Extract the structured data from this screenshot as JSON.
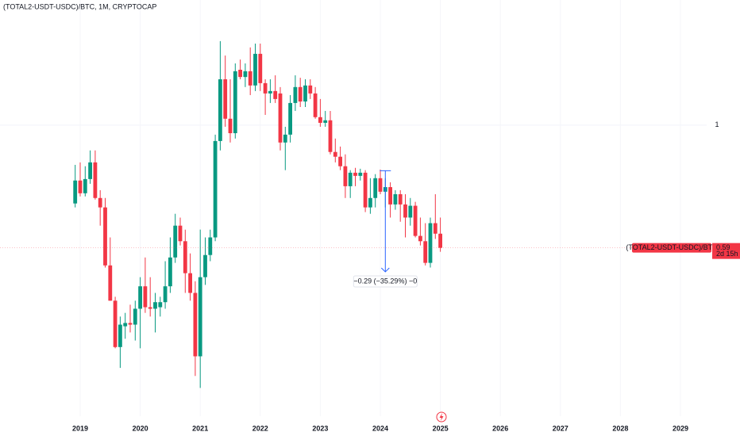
{
  "chart_data": {
    "type": "candlestick",
    "title": "(TOTAL2-USDT-USDC)/BTC, 1M, CRYPTOCAP",
    "log_scale": true,
    "grid": true,
    "up_color": "#089981",
    "down_color": "#f23645",
    "ylim": [
      0.286,
      1.713
    ],
    "yticks": [
      1
    ],
    "xticks": [
      2019,
      2020,
      2021,
      2022,
      2023,
      2024,
      2025,
      2026,
      2027,
      2028,
      2029
    ],
    "x": [
      "2018-12",
      "2019-01",
      "2019-02",
      "2019-03",
      "2019-04",
      "2019-05",
      "2019-06",
      "2019-07",
      "2019-08",
      "2019-09",
      "2019-10",
      "2019-11",
      "2019-12",
      "2020-01",
      "2020-02",
      "2020-03",
      "2020-04",
      "2020-05",
      "2020-06",
      "2020-07",
      "2020-08",
      "2020-09",
      "2020-10",
      "2020-11",
      "2020-12",
      "2021-01",
      "2021-02",
      "2021-03",
      "2021-04",
      "2021-05",
      "2021-06",
      "2021-07",
      "2021-08",
      "2021-09",
      "2021-10",
      "2021-11",
      "2021-12",
      "2022-01",
      "2022-02",
      "2022-03",
      "2022-04",
      "2022-05",
      "2022-06",
      "2022-07",
      "2022-08",
      "2022-09",
      "2022-10",
      "2022-11",
      "2022-12",
      "2023-01",
      "2023-02",
      "2023-03",
      "2023-04",
      "2023-05",
      "2023-06",
      "2023-07",
      "2023-08",
      "2023-09",
      "2023-10",
      "2023-11",
      "2023-12",
      "2024-01",
      "2024-02",
      "2024-03",
      "2024-04",
      "2024-05",
      "2024-06",
      "2024-07",
      "2024-08",
      "2024-09",
      "2024-10",
      "2024-11",
      "2024-12",
      "2025-01"
    ],
    "open": [
      0.714,
      0.788,
      0.746,
      0.793,
      0.852,
      0.731,
      0.702,
      0.547,
      0.47,
      0.385,
      0.421,
      0.427,
      0.424,
      0.454,
      0.5,
      0.457,
      0.454,
      0.457,
      0.467,
      0.5,
      0.566,
      0.649,
      0.607,
      0.529,
      0.486,
      0.37,
      0.52,
      0.572,
      0.617,
      0.934,
      1.218,
      1.028,
      0.966,
      1.269,
      1.23,
      1.261,
      1.186,
      1.359,
      1.198,
      1.146,
      1.158,
      1.146,
      0.928,
      0.96,
      1.1,
      1.178,
      1.107,
      1.186,
      1.146,
      1.035,
      1.01,
      1.021,
      0.891,
      0.873,
      0.838,
      0.769,
      0.815,
      0.804,
      0.815,
      0.702,
      0.731,
      0.796,
      0.751,
      0.766,
      0.711,
      0.743,
      0.711,
      0.672,
      0.707,
      0.621,
      0.607,
      0.553,
      0.656,
      0.627
    ],
    "high": [
      0.843,
      0.852,
      0.838,
      0.897,
      0.897,
      0.756,
      0.731,
      0.617,
      0.478,
      0.439,
      0.446,
      0.462,
      0.47,
      0.52,
      0.566,
      0.52,
      0.486,
      0.478,
      0.557,
      0.617,
      0.683,
      0.672,
      0.638,
      0.576,
      0.511,
      0.638,
      0.617,
      0.638,
      0.96,
      1.435,
      1.349,
      1.218,
      1.304,
      1.326,
      1.304,
      1.397,
      1.42,
      1.42,
      1.218,
      1.218,
      1.239,
      1.178,
      0.993,
      1.138,
      1.239,
      1.226,
      1.218,
      1.218,
      1.178,
      1.119,
      1.063,
      1.063,
      0.944,
      0.912,
      0.882,
      0.824,
      0.832,
      0.829,
      0.824,
      0.796,
      0.81,
      0.826,
      0.796,
      0.782,
      0.756,
      0.756,
      0.743,
      0.731,
      0.719,
      0.672,
      0.656,
      0.672,
      0.743,
      0.672
    ],
    "low": [
      0.702,
      0.736,
      0.736,
      0.777,
      0.726,
      0.649,
      0.542,
      0.47,
      0.383,
      0.352,
      0.399,
      0.41,
      0.396,
      0.383,
      0.446,
      0.439,
      0.41,
      0.439,
      0.454,
      0.486,
      0.553,
      0.596,
      0.486,
      0.47,
      0.34,
      0.323,
      0.503,
      0.557,
      0.607,
      0.897,
      0.993,
      0.928,
      0.944,
      1.218,
      1.178,
      1.138,
      1.158,
      1.158,
      1.045,
      1.1,
      1.1,
      0.897,
      0.824,
      0.928,
      1.063,
      1.081,
      1.081,
      1.119,
      1.028,
      0.993,
      0.993,
      0.882,
      0.852,
      0.824,
      0.731,
      0.731,
      0.769,
      0.788,
      0.688,
      0.683,
      0.702,
      0.743,
      0.702,
      0.672,
      0.695,
      0.66,
      0.617,
      0.649,
      0.617,
      0.596,
      0.547,
      0.542,
      0.613,
      0.58
    ],
    "close": [
      0.788,
      0.746,
      0.793,
      0.852,
      0.731,
      0.702,
      0.547,
      0.47,
      0.385,
      0.424,
      0.427,
      0.424,
      0.454,
      0.5,
      0.457,
      0.454,
      0.467,
      0.467,
      0.5,
      0.566,
      0.649,
      0.607,
      0.529,
      0.486,
      0.37,
      0.52,
      0.572,
      0.617,
      0.934,
      1.218,
      1.028,
      0.966,
      1.261,
      1.23,
      1.261,
      1.186,
      1.359,
      1.198,
      1.146,
      1.158,
      1.119,
      0.928,
      0.96,
      1.1,
      1.178,
      1.107,
      1.186,
      1.146,
      1.035,
      1.01,
      1.021,
      0.891,
      0.873,
      0.838,
      0.769,
      0.815,
      0.804,
      0.815,
      0.702,
      0.731,
      0.796,
      0.751,
      0.766,
      0.711,
      0.743,
      0.711,
      0.672,
      0.707,
      0.621,
      0.607,
      0.553,
      0.656,
      0.627,
      0.59
    ],
    "symbol_tag": "(TOTAL2-USDT-USDC)/BTC",
    "last_price": 0.59,
    "countdown": "2d 15h",
    "measure": {
      "label": "−0.29 (−35.29%) −0",
      "x": "2024-02",
      "from": 0.822,
      "to": 0.532
    }
  }
}
